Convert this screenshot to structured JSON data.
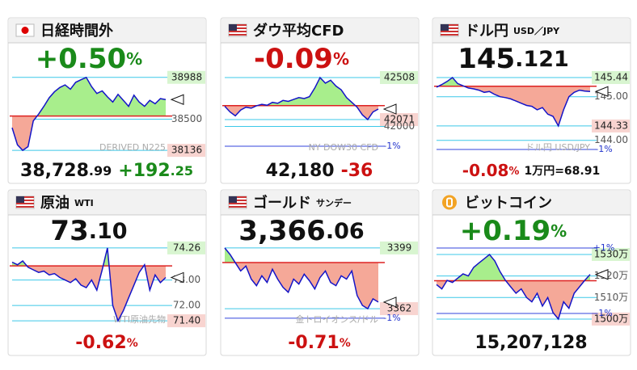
{
  "chart_data": [
    {
      "type": "line",
      "title": "日経時間外",
      "flag": "jp",
      "change": "+0.50",
      "change_unit": "%",
      "change_color": "#1a8a1a",
      "price": "38,728",
      "price_fraction": ".99",
      "change_abs": "+192",
      "change_abs_fraction": ".25",
      "watermark": "DERIVED N225",
      "ylim": [
        38090,
        39080
      ],
      "yticks": [
        38988,
        38500,
        38136
      ],
      "reference": 38536.74,
      "values": [
        38400,
        38200,
        38136,
        38180,
        38480,
        38560,
        38650,
        38750,
        38820,
        38870,
        38900,
        38850,
        38930,
        38960,
        38988,
        38880,
        38800,
        38830,
        38760,
        38700,
        38790,
        38720,
        38650,
        38780,
        38700,
        38650,
        38720,
        38680,
        38740,
        38729
      ]
    },
    {
      "type": "line",
      "title": "ダウ平均CFD",
      "flag": "us",
      "change": "-0.09",
      "change_unit": "%",
      "change_color": "#cc1111",
      "price": "42,180",
      "change_abs": "-36",
      "watermark": "NY DOW30 CFD",
      "ylim": [
        41710,
        42592
      ],
      "yticks": [
        42508,
        42071,
        42000
      ],
      "bands": [
        {
          "value": 41794,
          "label": "-1%"
        }
      ],
      "reference": 42216,
      "values": [
        42210,
        42150,
        42110,
        42170,
        42200,
        42190,
        42215,
        42230,
        42220,
        42250,
        42240,
        42270,
        42260,
        42280,
        42300,
        42290,
        42310,
        42400,
        42508,
        42450,
        42480,
        42420,
        42380,
        42300,
        42250,
        42200,
        42120,
        42071,
        42150,
        42180
      ]
    },
    {
      "type": "line",
      "title": "ドル円",
      "subtitle": "USD／JPY",
      "flag": "us",
      "change": "-0.08",
      "change_unit": "%",
      "change_color": "#cc1111",
      "price": "145",
      "price_fraction": ".121",
      "note": "1万円=68.91",
      "watermark": "ドル円 USD/JPY",
      "ylim": [
        143.68,
        145.625
      ],
      "yticks": [
        145.44,
        {
          "value": 145,
          "label": "145.00"
        },
        144.33,
        {
          "value": 144,
          "label": "144.00"
        }
      ],
      "bands": [
        {
          "value": 143.79,
          "label": "-1%"
        }
      ],
      "reference": 145.24,
      "values": [
        145.22,
        145.28,
        145.35,
        145.44,
        145.3,
        145.25,
        145.2,
        145.18,
        145.15,
        145.1,
        145.12,
        145.05,
        145.0,
        144.98,
        144.95,
        144.9,
        144.85,
        144.8,
        144.78,
        144.7,
        144.75,
        144.6,
        144.55,
        144.33,
        144.7,
        145.0,
        145.1,
        145.15,
        145.13,
        145.12
      ]
    },
    {
      "type": "line",
      "title": "原油",
      "subtitle": "WTI",
      "flag": "us",
      "change": "-0.62",
      "change_unit": "%",
      "change_color": "#cc1111",
      "price": "73",
      "price_fraction": ".10",
      "watermark": "WTI原油先物",
      "ylim": [
        71.18,
        74.51
      ],
      "yticks": [
        74.26,
        {
          "value": 73,
          "label": "73.00"
        },
        {
          "value": 72,
          "label": "72.00"
        },
        {
          "value": 71.4,
          "label": "71.40"
        }
      ],
      "reference": 73.556,
      "values": [
        73.7,
        73.6,
        73.75,
        73.5,
        73.4,
        73.3,
        73.35,
        73.2,
        73.25,
        73.1,
        73.0,
        72.9,
        73.05,
        72.8,
        72.7,
        73.0,
        72.6,
        73.4,
        74.26,
        72.0,
        71.4,
        71.8,
        72.3,
        72.8,
        73.3,
        73.6,
        72.6,
        73.2,
        72.9,
        73.1
      ]
    },
    {
      "type": "line",
      "title": "ゴールド",
      "subtitle": "サンデー",
      "flag": "us",
      "change": "-0.71",
      "change_unit": "%",
      "change_color": "#cc1111",
      "price": "3,366",
      "price_fraction": ".06",
      "watermark": "金トロイオンス/ドル",
      "ylim": [
        3351.2,
        3402.9
      ],
      "yticks": [
        3399,
        3362
      ],
      "bands": [
        {
          "value": 3356.2,
          "label": "-1%"
        }
      ],
      "reference": 3390.1,
      "values": [
        3399,
        3395,
        3390,
        3385,
        3388,
        3380,
        3376,
        3382,
        3378,
        3386,
        3380,
        3375,
        3372,
        3380,
        3377,
        3383,
        3379,
        3374,
        3381,
        3385,
        3378,
        3376,
        3382,
        3380,
        3385,
        3370,
        3364,
        3362,
        3368,
        3366
      ]
    },
    {
      "type": "line",
      "title": "ビットコイン",
      "flag": "btc",
      "change": "+0.19",
      "change_unit": "%",
      "change_color": "#1a8a1a",
      "price": "15,207,128",
      "ylim": [
        1496.6,
        1536
      ],
      "yticks": [
        {
          "value": 1530,
          "label": "1530万"
        },
        {
          "value": 1520,
          "label": "1520万"
        },
        {
          "value": 1510,
          "label": "1510万"
        },
        {
          "value": 1500,
          "label": "1500万"
        }
      ],
      "bands": [
        {
          "value": 1533,
          "label": "+1%"
        },
        {
          "value": 1502.6,
          "label": "-1%"
        }
      ],
      "reference": 1517.8,
      "values": [
        1516,
        1514,
        1518,
        1517,
        1519,
        1521,
        1520,
        1524,
        1526,
        1528,
        1530,
        1527,
        1522,
        1518,
        1515,
        1512,
        1514,
        1510,
        1508,
        1512,
        1506,
        1510,
        1503,
        1500,
        1508,
        1505,
        1512,
        1515,
        1518,
        1520.71
      ]
    }
  ]
}
